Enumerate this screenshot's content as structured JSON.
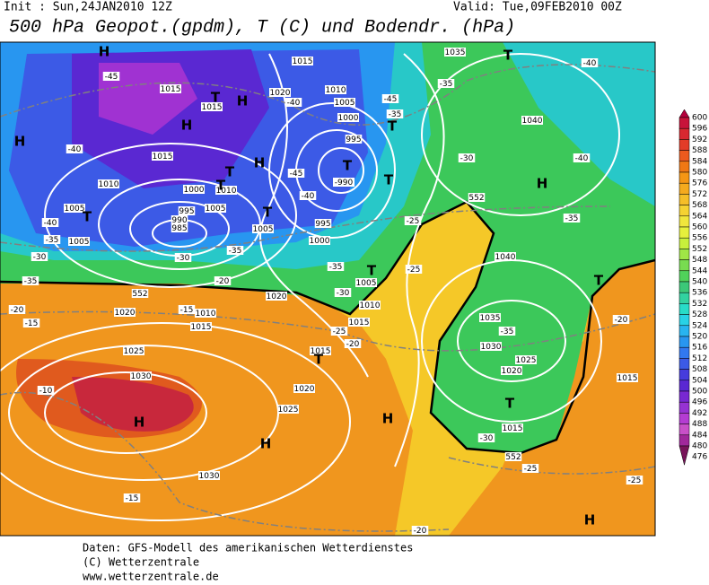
{
  "header": {
    "init": "Init : Sun,24JAN2010 12Z",
    "valid": "Valid: Tue,09FEB2010 00Z",
    "title": "500 hPa Geopot.(gpdm), T (C) und Bodendr. (hPa)"
  },
  "legend": {
    "scale": [
      {
        "value": 600,
        "color": "#b4003c"
      },
      {
        "value": 596,
        "color": "#c8143a"
      },
      {
        "value": 592,
        "color": "#d82830"
      },
      {
        "value": 588,
        "color": "#e23c28"
      },
      {
        "value": 584,
        "color": "#ec5a1e"
      },
      {
        "value": 580,
        "color": "#f07814"
      },
      {
        "value": 576,
        "color": "#f59614"
      },
      {
        "value": 572,
        "color": "#f5aa1e"
      },
      {
        "value": 568,
        "color": "#f5be28"
      },
      {
        "value": 564,
        "color": "#f5d232"
      },
      {
        "value": 560,
        "color": "#f0e63c"
      },
      {
        "value": 556,
        "color": "#e6f03c"
      },
      {
        "value": 552,
        "color": "#c8f03c"
      },
      {
        "value": 548,
        "color": "#a0e646"
      },
      {
        "value": 544,
        "color": "#78dc50"
      },
      {
        "value": 540,
        "color": "#50d25a"
      },
      {
        "value": 536,
        "color": "#3cc878"
      },
      {
        "value": 532,
        "color": "#32d2a0"
      },
      {
        "value": 528,
        "color": "#28dcc8"
      },
      {
        "value": 524,
        "color": "#28d2e6"
      },
      {
        "value": 520,
        "color": "#28b4f0"
      },
      {
        "value": 516,
        "color": "#2896f0"
      },
      {
        "value": 512,
        "color": "#3278f0"
      },
      {
        "value": 508,
        "color": "#3c5ae6"
      },
      {
        "value": 504,
        "color": "#463cdc"
      },
      {
        "value": 500,
        "color": "#5a28d2"
      },
      {
        "value": 496,
        "color": "#7828d2"
      },
      {
        "value": 492,
        "color": "#9632d2"
      },
      {
        "value": 488,
        "color": "#b43cd2"
      },
      {
        "value": 484,
        "color": "#c850c8"
      },
      {
        "value": 480,
        "color": "#a0289b"
      },
      {
        "value": 476,
        "color": "#78145a"
      }
    ]
  },
  "map": {
    "contour_labels": [
      "1015",
      "1035",
      "-40",
      "-45",
      "1015",
      "1015",
      "1020",
      "-40",
      "1010",
      "1005",
      "-45",
      "-35",
      "1000",
      "1040",
      "995",
      "-35",
      "-40",
      "1015",
      "-30",
      "-40",
      "-45",
      "-990",
      "1010",
      "1000",
      "1010",
      "-40",
      "1005",
      "995",
      "1005",
      "990",
      "985",
      "995",
      "-25",
      "-35",
      "-40",
      "-35",
      "1005",
      "1005",
      "1000",
      "-30",
      "-35",
      "-30",
      "1040",
      "-35",
      "-25",
      "-20",
      "-35",
      "1005",
      "-30",
      "1020",
      "552",
      "552",
      "552",
      "1010",
      "-20",
      "1020",
      "-15",
      "1010",
      "-15",
      "1015",
      "1015",
      "-25",
      "1035",
      "-35",
      "1030",
      "1025",
      "-20",
      "1015",
      "-20",
      "1020",
      "1025",
      "1030",
      "-10",
      "1020",
      "1015",
      "1025",
      "1015",
      "-30",
      "-25",
      "1030",
      "-15",
      "-20",
      "-25"
    ],
    "markers": [
      "H",
      "T",
      "T",
      "H",
      "H",
      "H",
      "T",
      "T",
      "H",
      "T",
      "T",
      "H",
      "T",
      "T",
      "T",
      "T",
      "T",
      "T",
      "T",
      "H",
      "H",
      "H",
      "H"
    ]
  },
  "footer": {
    "lines": [
      "Daten: GFS-Modell des amerikanischen Wetterdienstes",
      "(C) Wetterzentrale",
      "www.wetterzentrale.de"
    ]
  }
}
